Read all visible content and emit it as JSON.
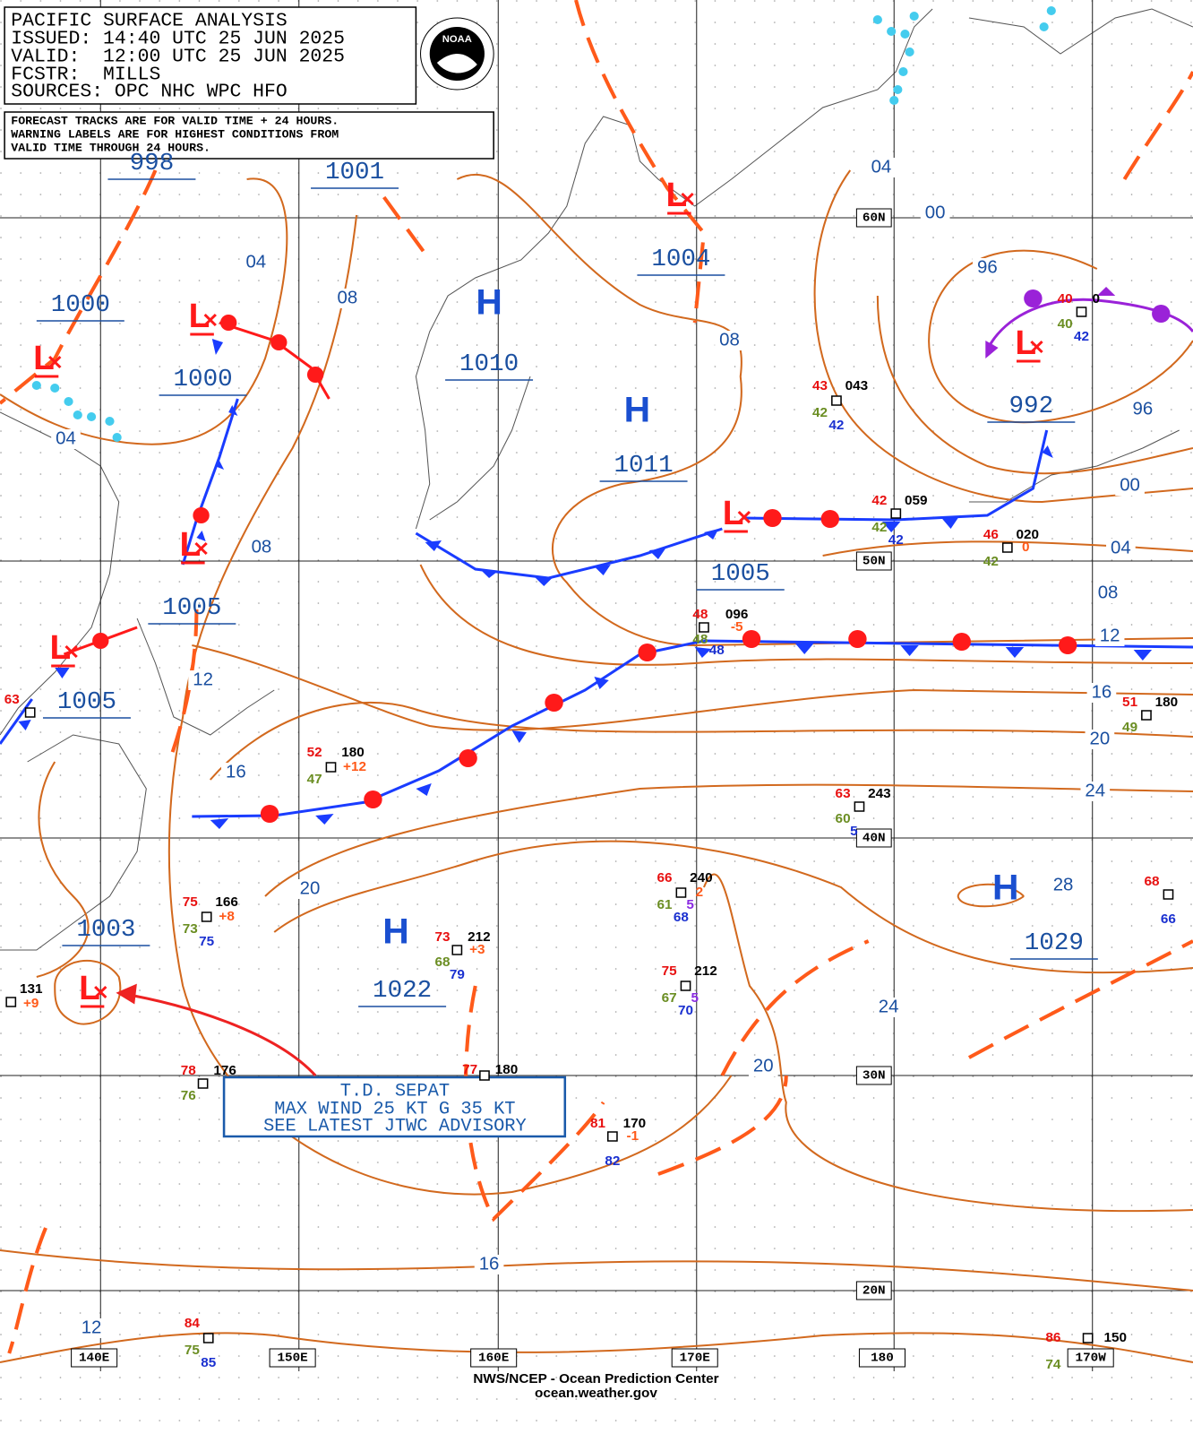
{
  "header": {
    "title": "PACIFIC SURFACE ANALYSIS",
    "lines": [
      "ISSUED: 14:40 UTC 25 JUN 2025",
      "VALID:  12:00 UTC 25 JUN 2025",
      "FCSTR:  MILLS",
      "SOURCES: OPC NHC WPC HFO"
    ]
  },
  "notes": [
    "FORECAST TRACKS ARE FOR VALID TIME + 24 HOURS.",
    "WARNING LABELS ARE FOR HIGHEST CONDITIONS FROM",
    "VALID TIME THROUGH 24 HOURS."
  ],
  "logo": "NOAA",
  "pressure_centers": [
    "L",
    "L",
    "L",
    "H",
    "H",
    "L",
    "L",
    "L",
    "L",
    "L",
    "H",
    "H"
  ],
  "pressure_values": [
    "998",
    "1001",
    "1004",
    "1000",
    "1000",
    "1010",
    "1011",
    "992",
    "1005",
    "1005",
    "1005",
    "1003",
    "1022",
    "1029"
  ],
  "isobar_labels": [
    "04",
    "08",
    "04",
    "08",
    "12",
    "16",
    "20",
    "08",
    "04",
    "00",
    "96",
    "96",
    "00",
    "04",
    "08",
    "12",
    "16",
    "20",
    "24",
    "28",
    "24",
    "20",
    "16",
    "12"
  ],
  "latitude_labels": [
    "60N",
    "50N",
    "40N",
    "30N",
    "20N"
  ],
  "longitude_labels": [
    "140E",
    "150E",
    "160E",
    "170E",
    "180",
    "170W"
  ],
  "stations": [
    [
      "43",
      "043",
      "42",
      "42"
    ],
    [
      "42",
      "059",
      "42",
      "42"
    ],
    [
      "46",
      "020",
      "0",
      "42"
    ],
    [
      "40",
      "0",
      "40",
      "42"
    ],
    [
      "48",
      "096",
      "-5",
      "48",
      "48"
    ],
    [
      "52",
      "180",
      "+12",
      "47"
    ],
    [
      "51",
      "180",
      "49"
    ],
    [
      "63",
      "243",
      "60",
      "5"
    ],
    [
      "66",
      "240",
      "2",
      "61",
      "5",
      "68"
    ],
    [
      "75",
      "166",
      "+8",
      "73",
      "75"
    ],
    [
      "73",
      "212",
      "+3",
      "68",
      "79"
    ],
    [
      "75",
      "212",
      "67",
      "5",
      "70"
    ],
    [
      "63"
    ],
    [
      "131",
      "+9"
    ],
    [
      "78",
      "176",
      "76"
    ],
    [
      "77",
      "180"
    ],
    [
      "81",
      "170",
      "-1",
      "82"
    ],
    [
      "68",
      "66"
    ],
    [
      "84",
      "75",
      "85"
    ],
    [
      "86",
      "150",
      "74"
    ]
  ],
  "advisory": [
    "T.D. SEPAT",
    "MAX WIND 25 KT G 35 KT",
    "SEE LATEST JTWC ADVISORY"
  ],
  "footer": {
    "office": "NWS/NCEP - Ocean Prediction Center",
    "website": "ocean.weather.gov"
  }
}
